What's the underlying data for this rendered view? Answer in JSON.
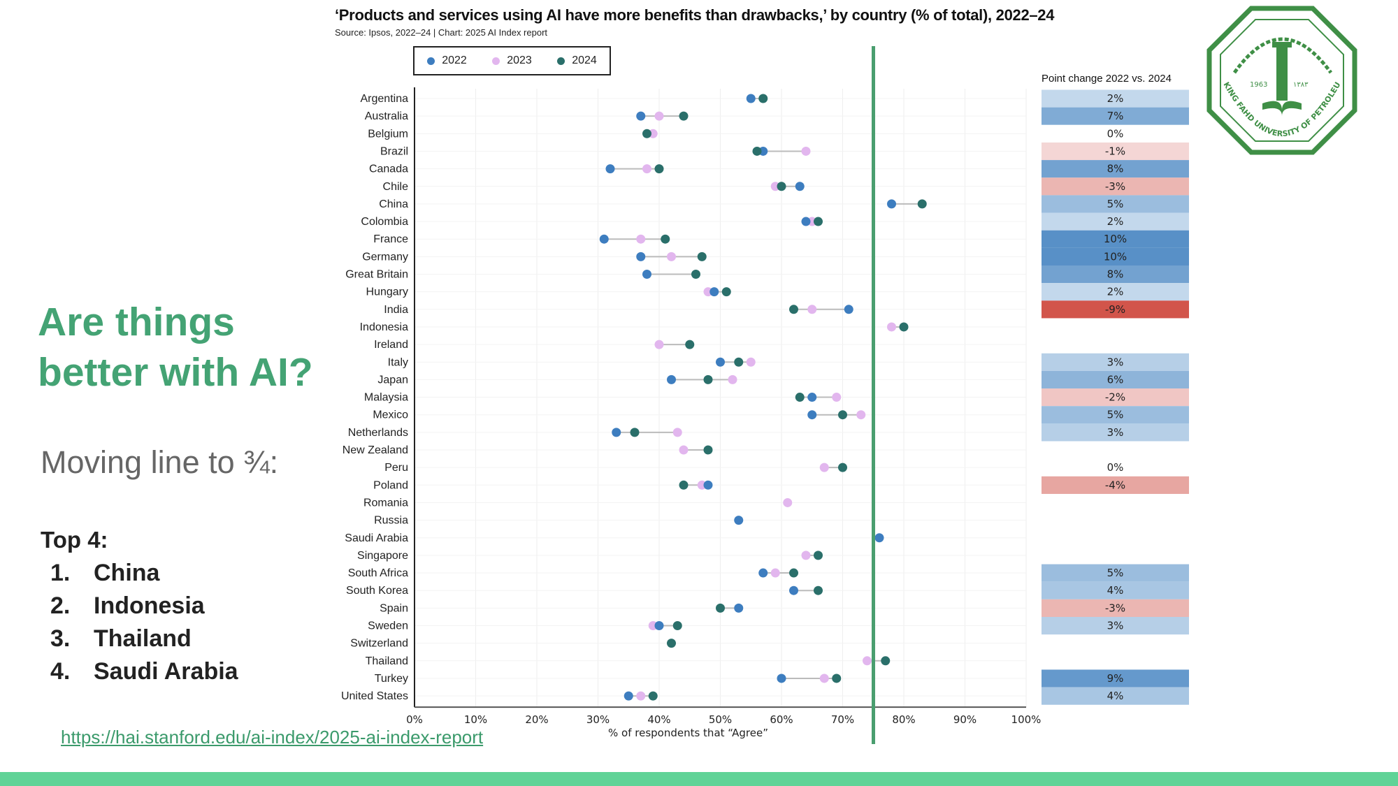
{
  "slide": {
    "heading_line1": "Are things",
    "heading_line2": "better with AI?",
    "subheading": "Moving line to ¾:",
    "top_label": "Top 4:",
    "top_list": [
      {
        "num": "1.",
        "name": "China"
      },
      {
        "num": "2.",
        "name": "Indonesia"
      },
      {
        "num": "3.",
        "name": "Thailand"
      },
      {
        "num": "4.",
        "name": "Saudi Arabia"
      }
    ],
    "link": "https://hai.stanford.edu/ai-index/2025-ai-index-report",
    "footer_color": "#60d397",
    "accent_color": "#44a374"
  },
  "logo": {
    "text": "KING FAHD UNIVERSITY OF PETROLEUM & MINERALS",
    "year": "1963",
    "year_hijri": "١٣٨٣",
    "color": "#3f8f46"
  },
  "chart_data": {
    "type": "dot-plot",
    "title": "‘Products and services using AI have more benefits than drawbacks,’ by country (% of total), 2022–24",
    "source": "Source: Ipsos, 2022–24 | Chart: 2025 AI Index report",
    "xlabel": "% of respondents that “Agree”",
    "xlim": [
      0,
      100
    ],
    "xticks": [
      "0%",
      "10%",
      "20%",
      "30%",
      "40%",
      "50%",
      "60%",
      "70%",
      "80%",
      "90%",
      "100%"
    ],
    "grid": true,
    "legend_position": "top-left",
    "threshold_line": 75,
    "threshold_color": "#4a9e6f",
    "series": [
      {
        "name": "2022",
        "color": "#3d7dbf"
      },
      {
        "name": "2023",
        "color": "#e2b6ee"
      },
      {
        "name": "2024",
        "color": "#2a6f6a"
      }
    ],
    "point_change_header": "Point change 2022 vs. 2024",
    "rows": [
      {
        "country": "Argentina",
        "v2022": 55,
        "v2023": null,
        "v2024": 57,
        "change": "2%"
      },
      {
        "country": "Australia",
        "v2022": 37,
        "v2023": 40,
        "v2024": 44,
        "change": "7%"
      },
      {
        "country": "Belgium",
        "v2022": null,
        "v2023": 39,
        "v2024": 38,
        "change": "0%"
      },
      {
        "country": "Brazil",
        "v2022": 57,
        "v2023": 64,
        "v2024": 56,
        "change": "-1%"
      },
      {
        "country": "Canada",
        "v2022": 32,
        "v2023": 38,
        "v2024": 40,
        "change": "8%"
      },
      {
        "country": "Chile",
        "v2022": 63,
        "v2023": 59,
        "v2024": 60,
        "change": "-3%"
      },
      {
        "country": "China",
        "v2022": 78,
        "v2023": null,
        "v2024": 83,
        "change": "5%"
      },
      {
        "country": "Colombia",
        "v2022": 64,
        "v2023": 65,
        "v2024": 66,
        "change": "2%"
      },
      {
        "country": "France",
        "v2022": 31,
        "v2023": 37,
        "v2024": 41,
        "change": "10%"
      },
      {
        "country": "Germany",
        "v2022": 37,
        "v2023": 42,
        "v2024": 47,
        "change": "10%"
      },
      {
        "country": "Great Britain",
        "v2022": 38,
        "v2023": null,
        "v2024": 46,
        "change": "8%"
      },
      {
        "country": "Hungary",
        "v2022": 49,
        "v2023": 48,
        "v2024": 51,
        "change": "2%"
      },
      {
        "country": "India",
        "v2022": 71,
        "v2023": 65,
        "v2024": 62,
        "change": "-9%"
      },
      {
        "country": "Indonesia",
        "v2022": null,
        "v2023": 78,
        "v2024": 80,
        "change": null
      },
      {
        "country": "Ireland",
        "v2022": null,
        "v2023": 40,
        "v2024": 45,
        "change": null
      },
      {
        "country": "Italy",
        "v2022": 50,
        "v2023": 55,
        "v2024": 53,
        "change": "3%"
      },
      {
        "country": "Japan",
        "v2022": 42,
        "v2023": 52,
        "v2024": 48,
        "change": "6%"
      },
      {
        "country": "Malaysia",
        "v2022": 65,
        "v2023": 69,
        "v2024": 63,
        "change": "-2%"
      },
      {
        "country": "Mexico",
        "v2022": 65,
        "v2023": 73,
        "v2024": 70,
        "change": "5%"
      },
      {
        "country": "Netherlands",
        "v2022": 33,
        "v2023": 43,
        "v2024": 36,
        "change": "3%"
      },
      {
        "country": "New Zealand",
        "v2022": null,
        "v2023": 44,
        "v2024": 48,
        "change": null
      },
      {
        "country": "Peru",
        "v2022": null,
        "v2023": 67,
        "v2024": 70,
        "change": "0%"
      },
      {
        "country": "Poland",
        "v2022": 48,
        "v2023": 47,
        "v2024": 44,
        "change": "-4%"
      },
      {
        "country": "Romania",
        "v2022": null,
        "v2023": 61,
        "v2024": null,
        "change": null
      },
      {
        "country": "Russia",
        "v2022": 53,
        "v2023": null,
        "v2024": null,
        "change": null
      },
      {
        "country": "Saudi Arabia",
        "v2022": 76,
        "v2023": null,
        "v2024": null,
        "change": null
      },
      {
        "country": "Singapore",
        "v2022": null,
        "v2023": 64,
        "v2024": 66,
        "change": null
      },
      {
        "country": "South Africa",
        "v2022": 57,
        "v2023": 59,
        "v2024": 62,
        "change": "5%"
      },
      {
        "country": "South Korea",
        "v2022": 62,
        "v2023": null,
        "v2024": 66,
        "change": "4%"
      },
      {
        "country": "Spain",
        "v2022": 53,
        "v2023": null,
        "v2024": 50,
        "change": "-3%"
      },
      {
        "country": "Sweden",
        "v2022": 40,
        "v2023": 39,
        "v2024": 43,
        "change": "3%"
      },
      {
        "country": "Switzerland",
        "v2022": null,
        "v2023": null,
        "v2024": 42,
        "change": null
      },
      {
        "country": "Thailand",
        "v2022": null,
        "v2023": 74,
        "v2024": 77,
        "change": null
      },
      {
        "country": "Turkey",
        "v2022": 60,
        "v2023": 67,
        "v2024": 69,
        "change": "9%"
      },
      {
        "country": "United States",
        "v2022": 35,
        "v2023": 37,
        "v2024": 39,
        "change": "4%"
      }
    ]
  }
}
